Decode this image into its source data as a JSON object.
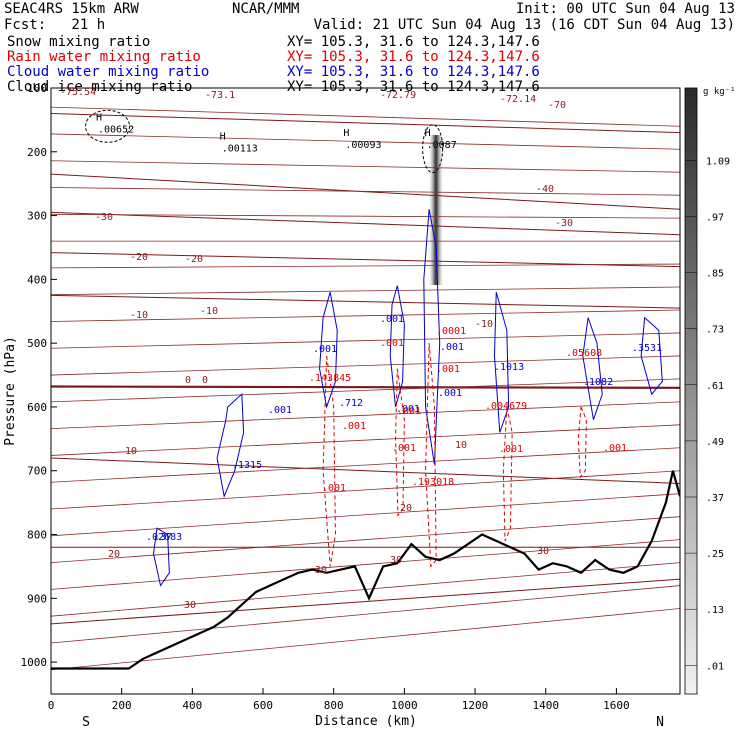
{
  "header": {
    "left1": "SEAC4RS 15km ARW",
    "left2": "Fcst:   21 h",
    "center1": "NCAR/MMM",
    "right1": "Init: 00 UTC Sun 04 Aug 13",
    "right2": "Valid: 21 UTC Sun 04 Aug 13 (16 CDT Sun 04 Aug 13)",
    "fields": [
      {
        "name": "Snow mixing ratio",
        "color": "#000000",
        "xy": "XY= 105.3, 31.6 to 124.3,147.6"
      },
      {
        "name": "Rain water mixing ratio",
        "color": "#e00000",
        "xy": "XY= 105.3, 31.6 to 124.3,147.6"
      },
      {
        "name": "Cloud water mixing ratio",
        "color": "#0000cc",
        "xy": "XY= 105.3, 31.6 to 124.3,147.6"
      },
      {
        "name": "Cloud ice mixing ratio",
        "color": "#000000",
        "xy": "XY= 105.3, 31.6 to 124.3,147.6"
      }
    ]
  },
  "chart_data": {
    "type": "cross-section",
    "xlabel": "Distance (km)",
    "ylabel": "Pressure (hPa)",
    "xlim": [
      0,
      1780
    ],
    "ylim": [
      1050,
      100
    ],
    "x_ticks": [
      0,
      200,
      400,
      600,
      800,
      1000,
      1200,
      1400,
      1600
    ],
    "y_ticks": [
      200,
      300,
      400,
      500,
      600,
      700,
      800,
      900,
      1000
    ],
    "y_top_label": "100",
    "endpoints": {
      "left": "S",
      "right": "N"
    },
    "colorbar": {
      "unit": "g kg⁻¹",
      "labels": [
        "1.09",
        ".97",
        ".85",
        ".73",
        ".61",
        ".49",
        ".37",
        ".25",
        ".13",
        ".01"
      ],
      "levels": [
        1.09,
        0.97,
        0.85,
        0.73,
        0.61,
        0.49,
        0.37,
        0.25,
        0.13,
        0.01
      ]
    },
    "terrain": {
      "x": [
        0,
        220,
        260,
        300,
        340,
        380,
        420,
        460,
        500,
        540,
        580,
        620,
        660,
        700,
        740,
        780,
        820,
        860,
        900,
        940,
        980,
        1020,
        1060,
        1100,
        1140,
        1180,
        1220,
        1260,
        1300,
        1340,
        1380,
        1420,
        1460,
        1500,
        1540,
        1580,
        1620,
        1660,
        1700,
        1740,
        1760,
        1780
      ],
      "p": [
        1010,
        1010,
        995,
        985,
        975,
        965,
        955,
        945,
        930,
        910,
        890,
        880,
        870,
        860,
        855,
        860,
        855,
        850,
        900,
        850,
        845,
        815,
        835,
        840,
        830,
        815,
        800,
        810,
        820,
        830,
        855,
        845,
        850,
        860,
        840,
        855,
        860,
        850,
        810,
        750,
        700,
        740
      ]
    },
    "temperature_isotherms": [
      {
        "label": "-70",
        "x": [
          0,
          1780
        ],
        "p": [
          140,
          170
        ]
      },
      {
        "label": "-40",
        "x": [
          0,
          1780
        ],
        "p": [
          235,
          290
        ]
      },
      {
        "label": "-30",
        "x": [
          0,
          1780
        ],
        "p": [
          295,
          330
        ]
      },
      {
        "label": "-20",
        "x": [
          0,
          1780
        ],
        "p": [
          358,
          380
        ]
      },
      {
        "label": "-10",
        "x": [
          0,
          1780
        ],
        "p": [
          425,
          445
        ]
      },
      {
        "label": "0",
        "x": [
          0,
          1780
        ],
        "p": [
          568,
          570
        ]
      },
      {
        "label": "10",
        "x": [
          0,
          1780
        ],
        "p": [
          680,
          720
        ]
      },
      {
        "label": "20",
        "x": [
          0,
          1780
        ],
        "p": [
          820,
          820
        ]
      },
      {
        "label": "30",
        "x": [
          0,
          1780
        ],
        "p": [
          940,
          870
        ]
      }
    ],
    "temperature_labels": [
      "-75.54",
      "-73.1",
      "-72.79",
      "-72.14",
      "-70",
      "-40",
      "-30",
      "-30",
      "-20",
      "-20",
      "-10",
      "-10",
      "-10",
      "0",
      "0",
      "10",
      "10",
      "20",
      "20",
      "30",
      "30",
      "30",
      "30"
    ],
    "snow_labels": [
      {
        "label": "H",
        "value": ".00652",
        "x": 150,
        "p": 160
      },
      {
        "label": "H",
        "value": ".00113",
        "x": 500,
        "p": 190
      },
      {
        "label": "H",
        "value": ".00093",
        "x": 850,
        "p": 185
      },
      {
        "label": "H",
        "value": ".0087",
        "x": 1080,
        "p": 185
      }
    ],
    "cloud_water_labels": [
      ".001",
      ".001",
      ".001",
      ".001",
      ".001",
      ".1315",
      ".712",
      ".001",
      ".1013",
      ".1082",
      ".3531",
      ".02683",
      ".37"
    ],
    "rain_labels": [
      ".001",
      ".001",
      ".001",
      ".001",
      ".001",
      ".001",
      ".001",
      ".001",
      ".143845",
      ".193018",
      ".004679",
      ".05608",
      ".0001"
    ]
  }
}
